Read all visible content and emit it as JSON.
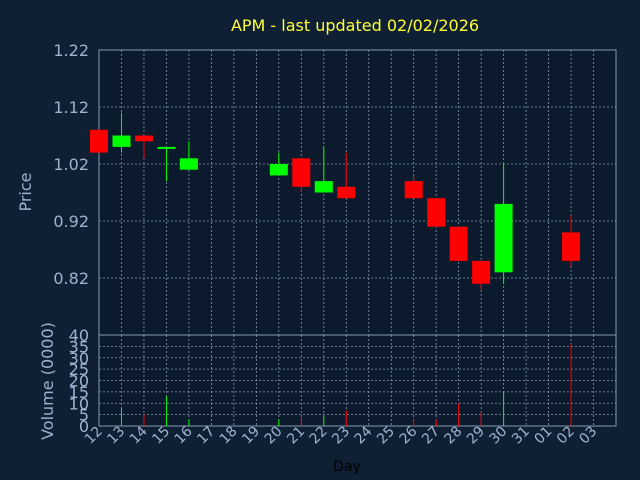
{
  "chart_data": {
    "type": "candlestick",
    "title": "APM - last updated 02/02/2026",
    "price_axis": {
      "ylabel": "Price",
      "ticks": [
        "1.22",
        "1.12",
        "1.02",
        "0.92",
        "0.82"
      ],
      "ylim": [
        0.72,
        1.22
      ]
    },
    "volume_axis": {
      "ylabel": "Volume (0000)",
      "ticks": [
        "40",
        "35",
        "30",
        "25",
        "20",
        "15",
        "10",
        "5",
        "0"
      ],
      "ylim": [
        0,
        40
      ]
    },
    "xlabel": "Day",
    "days": [
      "12",
      "13",
      "14",
      "15",
      "16",
      "17",
      "18",
      "19",
      "20",
      "21",
      "22",
      "23",
      "24",
      "25",
      "26",
      "27",
      "28",
      "29",
      "30",
      "31",
      "01",
      "02",
      "03"
    ],
    "candles": [
      {
        "day": "12",
        "open": 1.08,
        "close": 1.04,
        "high": 1.08,
        "low": 1.04,
        "volume": 0
      },
      {
        "day": "13",
        "open": 1.05,
        "close": 1.07,
        "high": 1.11,
        "low": 1.04,
        "volume": 8
      },
      {
        "day": "14",
        "open": 1.07,
        "close": 1.06,
        "high": 1.07,
        "low": 1.03,
        "volume": 5
      },
      {
        "day": "15",
        "open": 1.05,
        "close": 1.05,
        "high": 1.05,
        "low": 0.99,
        "volume": 13
      },
      {
        "day": "16",
        "open": 1.01,
        "close": 1.03,
        "high": 1.06,
        "low": 1.01,
        "volume": 3
      },
      {
        "day": "20",
        "open": 1.0,
        "close": 1.02,
        "high": 1.04,
        "low": 1.0,
        "volume": 3
      },
      {
        "day": "21",
        "open": 1.03,
        "close": 0.98,
        "high": 1.03,
        "low": 0.97,
        "volume": 4
      },
      {
        "day": "22",
        "open": 0.97,
        "close": 0.99,
        "high": 1.05,
        "low": 0.97,
        "volume": 4
      },
      {
        "day": "23",
        "open": 0.98,
        "close": 0.96,
        "high": 1.04,
        "low": 0.96,
        "volume": 7
      },
      {
        "day": "26",
        "open": 0.99,
        "close": 0.96,
        "high": 1.0,
        "low": 0.96,
        "volume": 3
      },
      {
        "day": "27",
        "open": 0.96,
        "close": 0.91,
        "high": 0.96,
        "low": 0.91,
        "volume": 3
      },
      {
        "day": "28",
        "open": 0.91,
        "close": 0.85,
        "high": 0.91,
        "low": 0.85,
        "volume": 10
      },
      {
        "day": "29",
        "open": 0.85,
        "close": 0.81,
        "high": 0.85,
        "low": 0.8,
        "volume": 6
      },
      {
        "day": "30",
        "open": 0.83,
        "close": 0.95,
        "high": 1.02,
        "low": 0.81,
        "volume": 15
      },
      {
        "day": "02",
        "open": 0.9,
        "close": 0.85,
        "high": 0.93,
        "low": 0.84,
        "volume": 36
      }
    ],
    "colors": {
      "up": "#00ff00",
      "down": "#ff0000",
      "background": "#0f2035",
      "plot_bg": "#0b1a2d",
      "grid": "#8a9ab0",
      "title": "#ffff33",
      "text": "#9fb3cf"
    },
    "grid": true
  }
}
